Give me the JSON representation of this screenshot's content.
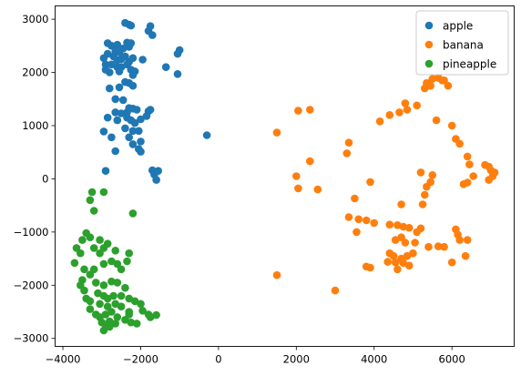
{
  "chart_data": {
    "type": "scatter",
    "title": "",
    "xlabel": "",
    "ylabel": "",
    "xlim": [
      -4200,
      7600
    ],
    "ylim": [
      -3150,
      3250
    ],
    "xticks": [
      -4000,
      -2000,
      0,
      2000,
      4000,
      6000
    ],
    "yticks": [
      -3000,
      -2000,
      -1000,
      0,
      1000,
      2000,
      3000
    ],
    "grid": false,
    "legend_position": "top-right",
    "series": [
      {
        "name": "apple",
        "color": "#1f77b4",
        "points": [
          [
            -2400,
            2930
          ],
          [
            -2300,
            2900
          ],
          [
            -2250,
            2880
          ],
          [
            -1750,
            2870
          ],
          [
            -1800,
            2780
          ],
          [
            -1700,
            2700
          ],
          [
            -1000,
            2420
          ],
          [
            -1050,
            2350
          ],
          [
            -2850,
            2550
          ],
          [
            -2750,
            2500
          ],
          [
            -2600,
            2520
          ],
          [
            -2450,
            2450
          ],
          [
            -2300,
            2480
          ],
          [
            -2350,
            2560
          ],
          [
            -2250,
            2550
          ],
          [
            -2650,
            2400
          ],
          [
            -2550,
            2380
          ],
          [
            -2850,
            2350
          ],
          [
            -2950,
            2270
          ],
          [
            -2700,
            2300
          ],
          [
            -2600,
            2230
          ],
          [
            -2500,
            2250
          ],
          [
            -2400,
            2300
          ],
          [
            -2300,
            2200
          ],
          [
            -2200,
            2270
          ],
          [
            -2900,
            2150
          ],
          [
            -2750,
            2150
          ],
          [
            -2600,
            2100
          ],
          [
            -2500,
            2100
          ],
          [
            -2350,
            2150
          ],
          [
            -2900,
            2050
          ],
          [
            -2800,
            2000
          ],
          [
            -2550,
            2020
          ],
          [
            -2250,
            2050
          ],
          [
            -2150,
            2020
          ],
          [
            -2200,
            1950
          ],
          [
            -1950,
            2240
          ],
          [
            -1350,
            2100
          ],
          [
            -1050,
            1970
          ],
          [
            -2400,
            1820
          ],
          [
            -2300,
            1800
          ],
          [
            -2200,
            1750
          ],
          [
            -2800,
            1700
          ],
          [
            -2550,
            1720
          ],
          [
            -2650,
            1500
          ],
          [
            -2450,
            1480
          ],
          [
            -2650,
            1250
          ],
          [
            -2500,
            1230
          ],
          [
            -2350,
            1250
          ],
          [
            -2300,
            1330
          ],
          [
            -2200,
            1320
          ],
          [
            -2100,
            1300
          ],
          [
            -1800,
            1270
          ],
          [
            -1750,
            1300
          ],
          [
            -1850,
            1180
          ],
          [
            -2850,
            1150
          ],
          [
            -2600,
            1100
          ],
          [
            -2350,
            1150
          ],
          [
            -2250,
            1100
          ],
          [
            -2150,
            1050
          ],
          [
            -2000,
            1120
          ],
          [
            -2400,
            950
          ],
          [
            -2200,
            900
          ],
          [
            -2050,
            900
          ],
          [
            -2950,
            890
          ],
          [
            -2750,
            780
          ],
          [
            -2300,
            780
          ],
          [
            -2200,
            650
          ],
          [
            -2000,
            700
          ],
          [
            -2050,
            560
          ],
          [
            -2000,
            510
          ],
          [
            -2650,
            520
          ],
          [
            -1700,
            160
          ],
          [
            -1650,
            80
          ],
          [
            -1550,
            150
          ],
          [
            -1600,
            -20
          ],
          [
            -2900,
            150
          ],
          [
            -300,
            820
          ]
        ]
      },
      {
        "name": "banana",
        "color": "#ff7f0e",
        "points": [
          [
            5500,
            1880
          ],
          [
            5650,
            1900
          ],
          [
            5800,
            1850
          ],
          [
            5900,
            1750
          ],
          [
            5350,
            1800
          ],
          [
            5300,
            1700
          ],
          [
            5450,
            1750
          ],
          [
            5750,
            1850
          ],
          [
            4800,
            1420
          ],
          [
            4850,
            1300
          ],
          [
            5100,
            1380
          ],
          [
            4400,
            1200
          ],
          [
            4650,
            1250
          ],
          [
            4150,
            1080
          ],
          [
            5600,
            1100
          ],
          [
            6100,
            750
          ],
          [
            6200,
            660
          ],
          [
            6000,
            1000
          ],
          [
            6400,
            420
          ],
          [
            6450,
            270
          ],
          [
            6850,
            260
          ],
          [
            6950,
            230
          ],
          [
            7000,
            160
          ],
          [
            7100,
            120
          ],
          [
            7050,
            50
          ],
          [
            6950,
            -20
          ],
          [
            6550,
            50
          ],
          [
            6400,
            -70
          ],
          [
            6300,
            -100
          ],
          [
            5200,
            120
          ],
          [
            5500,
            70
          ],
          [
            5450,
            -60
          ],
          [
            5350,
            -150
          ],
          [
            5300,
            -300
          ],
          [
            5250,
            -480
          ],
          [
            3900,
            -60
          ],
          [
            3500,
            -370
          ],
          [
            4700,
            -480
          ],
          [
            2050,
            1280
          ],
          [
            2350,
            1300
          ],
          [
            1500,
            870
          ],
          [
            2000,
            50
          ],
          [
            2050,
            -180
          ],
          [
            2550,
            -200
          ],
          [
            2350,
            330
          ],
          [
            3350,
            680
          ],
          [
            3300,
            480
          ],
          [
            3350,
            -720
          ],
          [
            3600,
            -760
          ],
          [
            3800,
            -780
          ],
          [
            4000,
            -830
          ],
          [
            3550,
            -1000
          ],
          [
            4400,
            -860
          ],
          [
            4600,
            -870
          ],
          [
            4750,
            -900
          ],
          [
            4900,
            -920
          ],
          [
            5100,
            -1000
          ],
          [
            5200,
            -930
          ],
          [
            4700,
            -1100
          ],
          [
            4800,
            -1200
          ],
          [
            4550,
            -1150
          ],
          [
            5050,
            -1200
          ],
          [
            5400,
            -1280
          ],
          [
            5650,
            -1270
          ],
          [
            5800,
            -1280
          ],
          [
            6100,
            -950
          ],
          [
            6150,
            -1050
          ],
          [
            6200,
            -1150
          ],
          [
            6400,
            -1150
          ],
          [
            6350,
            -1450
          ],
          [
            6000,
            -1570
          ],
          [
            4400,
            -1400
          ],
          [
            4500,
            -1450
          ],
          [
            4700,
            -1500
          ],
          [
            4850,
            -1450
          ],
          [
            5000,
            -1400
          ],
          [
            4550,
            -1570
          ],
          [
            4750,
            -1580
          ],
          [
            4900,
            -1630
          ],
          [
            3800,
            -1650
          ],
          [
            3900,
            -1670
          ],
          [
            4350,
            -1560
          ],
          [
            4600,
            -1700
          ],
          [
            1500,
            -1810
          ],
          [
            3000,
            -2100
          ]
        ]
      },
      {
        "name": "pineapple",
        "color": "#2ca02c",
        "points": [
          [
            -3250,
            -250
          ],
          [
            -3300,
            -400
          ],
          [
            -2950,
            -250
          ],
          [
            -2200,
            -650
          ],
          [
            -3200,
            -600
          ],
          [
            -3400,
            -1020
          ],
          [
            -3300,
            -1100
          ],
          [
            -3500,
            -1150
          ],
          [
            -3050,
            -1150
          ],
          [
            -2850,
            -1220
          ],
          [
            -2950,
            -1300
          ],
          [
            -3650,
            -1300
          ],
          [
            -3550,
            -1400
          ],
          [
            -3200,
            -1300
          ],
          [
            -3050,
            -1400
          ],
          [
            -2650,
            -1350
          ],
          [
            -2300,
            -1400
          ],
          [
            -3700,
            -1580
          ],
          [
            -3450,
            -1700
          ],
          [
            -3500,
            -1900
          ],
          [
            -3300,
            -1800
          ],
          [
            -3200,
            -1700
          ],
          [
            -2950,
            -1600
          ],
          [
            -2750,
            -1550
          ],
          [
            -2600,
            -1600
          ],
          [
            -2500,
            -1700
          ],
          [
            -2350,
            -1550
          ],
          [
            -3550,
            -2000
          ],
          [
            -3450,
            -2100
          ],
          [
            -3150,
            -1950
          ],
          [
            -2950,
            -2000
          ],
          [
            -2750,
            -1930
          ],
          [
            -2600,
            -1950
          ],
          [
            -2400,
            -2050
          ],
          [
            -3100,
            -2150
          ],
          [
            -2950,
            -2200
          ],
          [
            -2850,
            -2250
          ],
          [
            -2700,
            -2200
          ],
          [
            -3400,
            -2250
          ],
          [
            -3300,
            -2300
          ],
          [
            -2500,
            -2200
          ],
          [
            -2300,
            -2250
          ],
          [
            -2150,
            -2300
          ],
          [
            -2000,
            -2350
          ],
          [
            -3050,
            -2350
          ],
          [
            -2850,
            -2400
          ],
          [
            -2650,
            -2350
          ],
          [
            -2500,
            -2400
          ],
          [
            -1950,
            -2480
          ],
          [
            -3300,
            -2450
          ],
          [
            -3150,
            -2550
          ],
          [
            -3050,
            -2600
          ],
          [
            -2900,
            -2550
          ],
          [
            -2750,
            -2500
          ],
          [
            -2600,
            -2600
          ],
          [
            -2300,
            -2550
          ],
          [
            -1800,
            -2550
          ],
          [
            -1600,
            -2560
          ],
          [
            -3000,
            -2700
          ],
          [
            -2900,
            -2750
          ],
          [
            -2800,
            -2680
          ],
          [
            -2650,
            -2720
          ],
          [
            -2400,
            -2650
          ],
          [
            -2250,
            -2700
          ],
          [
            -2100,
            -2720
          ],
          [
            -1750,
            -2600
          ],
          [
            -2950,
            -2850
          ],
          [
            -2800,
            -2780
          ],
          [
            -2300,
            -2500
          ]
        ]
      }
    ]
  }
}
